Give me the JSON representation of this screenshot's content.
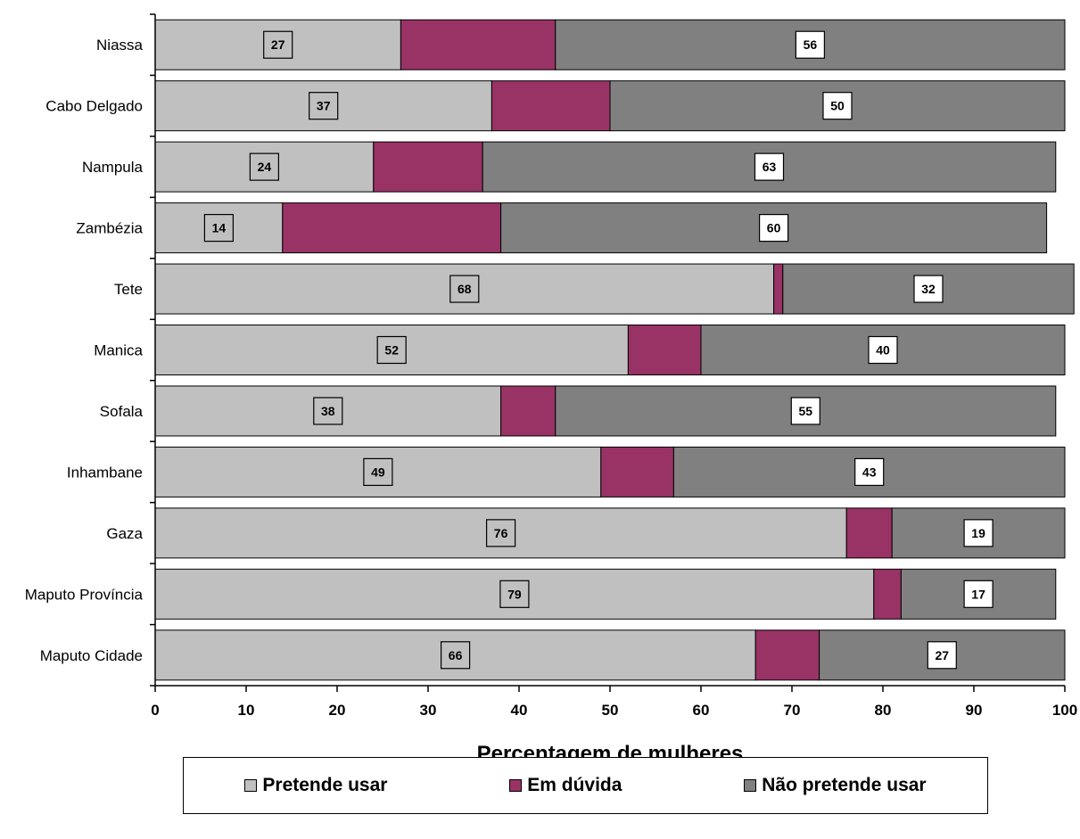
{
  "chart_data": {
    "type": "bar",
    "orientation": "horizontal",
    "stacked": true,
    "title": "",
    "xlabel": "Percentagem de mulheres",
    "ylabel": "",
    "xlim": [
      0,
      100
    ],
    "xticks": [
      "0",
      "10",
      "20",
      "30",
      "40",
      "50",
      "60",
      "70",
      "80",
      "90",
      "100"
    ],
    "grid": false,
    "legend_position": "bottom",
    "categories": [
      "Niassa",
      "Cabo Delgado",
      "Nampula",
      "Zambézia",
      "Tete",
      "Manica",
      "Sofala",
      "Inhambane",
      "Gaza",
      "Maputo Província",
      "Maputo Cidade"
    ],
    "series": [
      {
        "name": "Pretende usar",
        "color": "#c0c0c0",
        "values": [
          27,
          37,
          24,
          14,
          68,
          52,
          38,
          49,
          76,
          79,
          66
        ],
        "labels": [
          "27",
          "37",
          "24",
          "14",
          "68",
          "52",
          "38",
          "49",
          "76",
          "79",
          "66"
        ]
      },
      {
        "name": "Em dúvida",
        "color": "#993366",
        "values": [
          17,
          13,
          12,
          24,
          1,
          8,
          6,
          8,
          5,
          3,
          7
        ],
        "labels": []
      },
      {
        "name": "Não pretende usar",
        "color": "#808080",
        "values": [
          56,
          50,
          63,
          60,
          32,
          40,
          55,
          43,
          19,
          17,
          27
        ],
        "labels": [
          "56",
          "50",
          "63",
          "60",
          "32",
          "40",
          "55",
          "43",
          "19",
          "17",
          "27"
        ]
      }
    ]
  }
}
